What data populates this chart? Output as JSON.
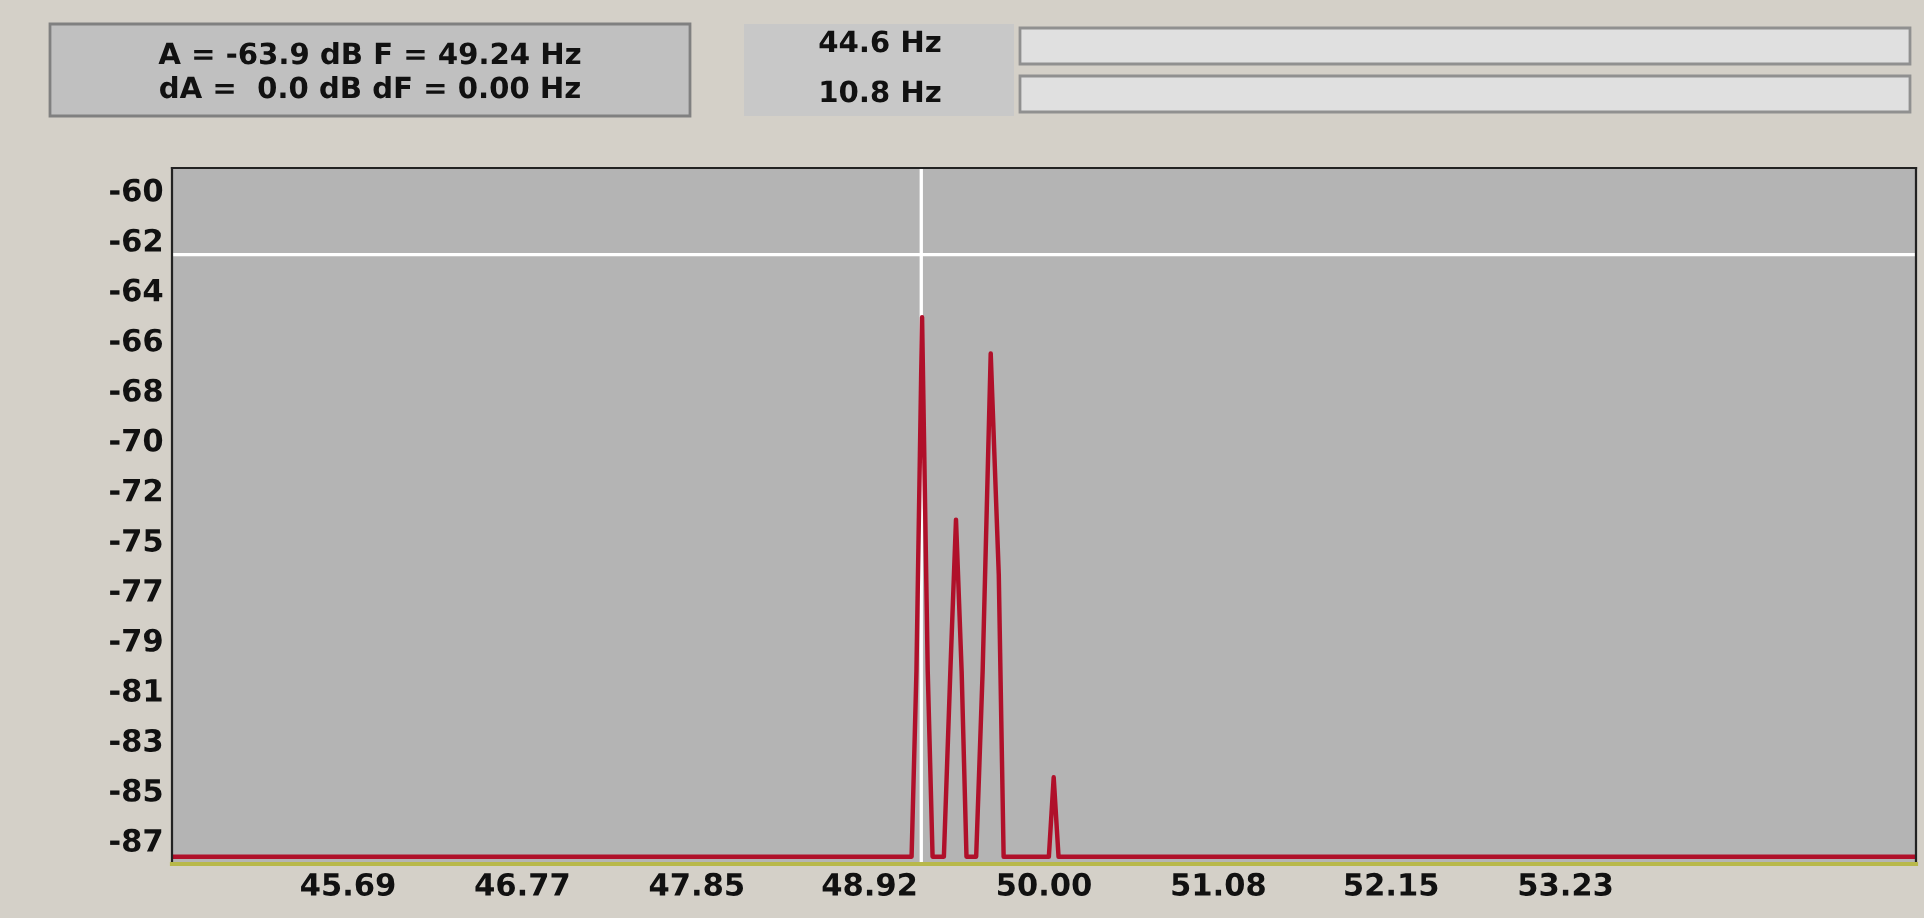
{
  "chart_data": {
    "type": "line",
    "annotations": [
      "A = -63.9 dB F = 49.24 Hz",
      "dA =  0.0 dB dF = 0.00 Hz",
      "44.6 Hz",
      "10.8 Hz"
    ],
    "series": [
      {
        "color": "#b0102a",
        "x": [
          44.6,
          49.18,
          49.21,
          49.245,
          49.28,
          49.31,
          49.38,
          49.42,
          49.455,
          49.49,
          49.52,
          49.58,
          49.62,
          49.67,
          49.72,
          49.75,
          50.03,
          50.06,
          50.09,
          55.4
        ],
        "values": [
          -87.7,
          -87.7,
          -80,
          -65.3,
          -80,
          -87.7,
          -87.7,
          -80,
          -73.7,
          -80,
          -87.7,
          -87.7,
          -80,
          -66.8,
          -76,
          -87.7,
          -87.7,
          -84.4,
          -87.7,
          -87.7
        ]
      }
    ],
    "xlim": [
      44.6,
      55.4
    ],
    "xticks": [
      45.69,
      46.77,
      47.85,
      48.92,
      {
        "value": 50.0,
        "label": "50.00"
      },
      51.08,
      52.15,
      53.23
    ],
    "ylim": [
      -88,
      -59.1
    ],
    "yticks": [
      -60,
      {
        "value": -62.08,
        "label": "-62"
      },
      {
        "value": -64.15,
        "label": "-64"
      },
      {
        "value": -66.23,
        "label": "-66"
      },
      {
        "value": -68.31,
        "label": "-68"
      },
      {
        "value": -70.38,
        "label": "-70"
      },
      {
        "value": -72.46,
        "label": "-72"
      },
      {
        "value": -74.54,
        "label": "-75"
      },
      {
        "value": -76.62,
        "label": "-77"
      },
      {
        "value": -78.69,
        "label": "-79"
      },
      {
        "value": -80.77,
        "label": "-81"
      },
      {
        "value": -82.85,
        "label": "-83"
      },
      {
        "value": -84.92,
        "label": "-85"
      },
      -87
    ],
    "ref_lines": [
      {
        "axis": "x",
        "value": 49.24,
        "color": "#ffffff"
      },
      {
        "axis": "y",
        "value": -62.7,
        "color": "#ffffff"
      }
    ],
    "grid": false,
    "legend": false
  }
}
